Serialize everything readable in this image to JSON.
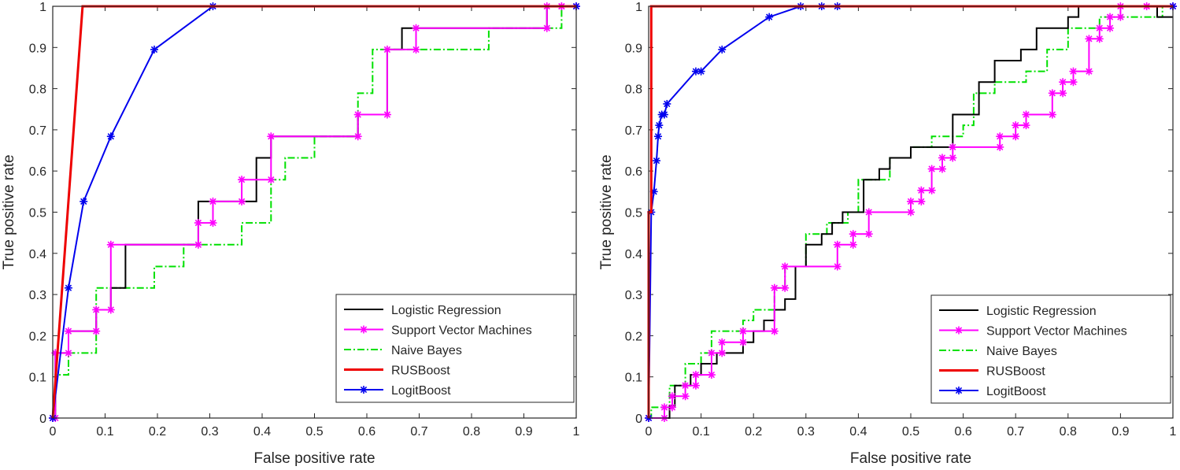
{
  "colors": {
    "logistic": "#000000",
    "svm": "#ff00ff",
    "nb": "#00e000",
    "rus": "#ee0000",
    "logit": "#0000ee",
    "axis": "#262626"
  },
  "legend_labels": [
    "Logistic Regression",
    "Support Vector Machines",
    "Naive Bayes",
    "RUSBoost",
    "LogitBoost"
  ],
  "chart_data": [
    {
      "type": "line",
      "title": "",
      "xlabel": "False positive rate",
      "ylabel": "True positive rate",
      "xlim": [
        0,
        1
      ],
      "ylim": [
        0,
        1
      ],
      "xticks": [
        "0",
        "0.1",
        "0.2",
        "0.3",
        "0.4",
        "0.5",
        "0.6",
        "0.7",
        "0.8",
        "0.9",
        "1"
      ],
      "yticks": [
        "0",
        "0.1",
        "0.2",
        "0.3",
        "0.4",
        "0.5",
        "0.6",
        "0.7",
        "0.8",
        "0.9",
        "1"
      ],
      "legend_position": "bottom-right",
      "series": [
        {
          "name": "Logistic Regression",
          "key": "logistic",
          "style": "solid",
          "marker": "none",
          "x": [
            0,
            0.005,
            0.005,
            0.03,
            0.03,
            0.083,
            0.083,
            0.111,
            0.111,
            0.139,
            0.139,
            0.278,
            0.278,
            0.389,
            0.389,
            0.417,
            0.417,
            0.583,
            0.583,
            0.639,
            0.639,
            0.667,
            0.667,
            0.944,
            0.944,
            0.972,
            0.972,
            1
          ],
          "y": [
            0,
            0,
            0.158,
            0.158,
            0.211,
            0.211,
            0.263,
            0.263,
            0.316,
            0.316,
            0.421,
            0.421,
            0.526,
            0.526,
            0.632,
            0.632,
            0.684,
            0.684,
            0.737,
            0.737,
            0.895,
            0.895,
            0.947,
            0.947,
            1,
            1,
            1,
            1
          ]
        },
        {
          "name": "Support Vector Machines",
          "key": "svm",
          "style": "solid",
          "marker": "asterisk",
          "x": [
            0,
            0.005,
            0.005,
            0.03,
            0.03,
            0.083,
            0.083,
            0.111,
            0.111,
            0.278,
            0.278,
            0.306,
            0.306,
            0.361,
            0.361,
            0.417,
            0.417,
            0.583,
            0.583,
            0.639,
            0.639,
            0.694,
            0.694,
            0.944,
            0.944,
            0.972,
            0.972,
            1
          ],
          "y": [
            0,
            0,
            0.158,
            0.158,
            0.211,
            0.211,
            0.263,
            0.263,
            0.421,
            0.421,
            0.474,
            0.474,
            0.526,
            0.526,
            0.579,
            0.579,
            0.684,
            0.684,
            0.737,
            0.737,
            0.895,
            0.895,
            0.947,
            0.947,
            1,
            1,
            1,
            1
          ]
        },
        {
          "name": "Naive Bayes",
          "key": "nb",
          "style": "dashdot",
          "marker": "none",
          "x": [
            0,
            0.005,
            0.005,
            0.03,
            0.03,
            0.083,
            0.083,
            0.194,
            0.194,
            0.25,
            0.25,
            0.361,
            0.361,
            0.417,
            0.417,
            0.444,
            0.444,
            0.5,
            0.5,
            0.583,
            0.583,
            0.611,
            0.611,
            0.833,
            0.833,
            0.972,
            0.972,
            1
          ],
          "y": [
            0,
            0,
            0.105,
            0.105,
            0.158,
            0.158,
            0.316,
            0.316,
            0.368,
            0.368,
            0.421,
            0.421,
            0.474,
            0.474,
            0.579,
            0.579,
            0.632,
            0.632,
            0.684,
            0.684,
            0.789,
            0.789,
            0.895,
            0.895,
            0.947,
            0.947,
            1,
            1
          ]
        },
        {
          "name": "RUSBoost",
          "key": "rus",
          "style": "solid",
          "marker": "none",
          "x": [
            0,
            0.057,
            1
          ],
          "y": [
            0,
            1,
            1
          ]
        },
        {
          "name": "LogitBoost",
          "key": "logit",
          "style": "solid",
          "marker": "asterisk",
          "x": [
            0,
            0.03,
            0.059,
            0.111,
            0.194,
            0.306,
            1
          ],
          "y": [
            0,
            0.316,
            0.526,
            0.684,
            0.895,
            1,
            1
          ]
        }
      ]
    },
    {
      "type": "line",
      "title": "",
      "xlabel": "False positive rate",
      "ylabel": "True positive rate",
      "xlim": [
        0,
        1
      ],
      "ylim": [
        0,
        1
      ],
      "xticks": [
        "0",
        "0.1",
        "0.2",
        "0.3",
        "0.4",
        "0.5",
        "0.6",
        "0.7",
        "0.8",
        "0.9",
        "1"
      ],
      "yticks": [
        "0",
        "0.1",
        "0.2",
        "0.3",
        "0.4",
        "0.5",
        "0.6",
        "0.7",
        "0.8",
        "0.9",
        "1"
      ],
      "legend_position": "bottom-right",
      "series": [
        {
          "name": "Logistic Regression",
          "key": "logistic",
          "style": "solid",
          "marker": "none",
          "x": [
            0,
            0.04,
            0.04,
            0.05,
            0.05,
            0.08,
            0.08,
            0.1,
            0.1,
            0.13,
            0.13,
            0.18,
            0.18,
            0.2,
            0.2,
            0.22,
            0.22,
            0.24,
            0.24,
            0.26,
            0.26,
            0.28,
            0.28,
            0.3,
            0.3,
            0.33,
            0.33,
            0.35,
            0.35,
            0.37,
            0.37,
            0.41,
            0.41,
            0.44,
            0.44,
            0.46,
            0.46,
            0.5,
            0.5,
            0.58,
            0.58,
            0.63,
            0.63,
            0.66,
            0.66,
            0.71,
            0.71,
            0.74,
            0.74,
            0.8,
            0.8,
            0.82,
            0.82,
            0.87,
            0.87,
            0.97,
            0.97,
            1
          ],
          "y": [
            0,
            0,
            0.03,
            0.03,
            0.079,
            0.079,
            0.105,
            0.105,
            0.132,
            0.132,
            0.158,
            0.158,
            0.184,
            0.184,
            0.211,
            0.211,
            0.237,
            0.237,
            0.263,
            0.263,
            0.289,
            0.289,
            0.368,
            0.368,
            0.421,
            0.421,
            0.447,
            0.447,
            0.474,
            0.474,
            0.5,
            0.5,
            0.579,
            0.579,
            0.605,
            0.605,
            0.632,
            0.632,
            0.658,
            0.658,
            0.737,
            0.737,
            0.816,
            0.816,
            0.868,
            0.868,
            0.895,
            0.895,
            0.947,
            0.947,
            0.974,
            0.974,
            1,
            1,
            1,
            1,
            0.974,
            0.974
          ]
        },
        {
          "name": "Support Vector Machines",
          "key": "svm",
          "style": "solid",
          "marker": "asterisk",
          "x": [
            0,
            0.03,
            0.03,
            0.045,
            0.045,
            0.07,
            0.07,
            0.09,
            0.09,
            0.12,
            0.12,
            0.14,
            0.14,
            0.18,
            0.18,
            0.24,
            0.24,
            0.26,
            0.26,
            0.36,
            0.36,
            0.39,
            0.39,
            0.42,
            0.42,
            0.5,
            0.5,
            0.52,
            0.52,
            0.54,
            0.54,
            0.56,
            0.56,
            0.58,
            0.58,
            0.67,
            0.67,
            0.7,
            0.7,
            0.72,
            0.72,
            0.77,
            0.77,
            0.79,
            0.79,
            0.81,
            0.81,
            0.84,
            0.84,
            0.86,
            0.86,
            0.88,
            0.88,
            0.9,
            0.9,
            0.95,
            0.95,
            1
          ],
          "y": [
            0,
            0,
            0.026,
            0.026,
            0.053,
            0.053,
            0.079,
            0.079,
            0.105,
            0.105,
            0.158,
            0.158,
            0.184,
            0.184,
            0.211,
            0.211,
            0.316,
            0.316,
            0.368,
            0.368,
            0.421,
            0.421,
            0.447,
            0.447,
            0.5,
            0.5,
            0.526,
            0.526,
            0.553,
            0.553,
            0.605,
            0.605,
            0.632,
            0.632,
            0.658,
            0.658,
            0.684,
            0.684,
            0.711,
            0.711,
            0.737,
            0.737,
            0.789,
            0.789,
            0.816,
            0.816,
            0.842,
            0.842,
            0.921,
            0.921,
            0.947,
            0.947,
            0.974,
            0.974,
            1,
            1,
            1,
            1
          ]
        },
        {
          "name": "Naive Bayes",
          "key": "nb",
          "style": "dashdot",
          "marker": "none",
          "x": [
            0,
            0.005,
            0.005,
            0.04,
            0.04,
            0.07,
            0.07,
            0.1,
            0.1,
            0.12,
            0.12,
            0.18,
            0.18,
            0.2,
            0.2,
            0.24,
            0.24,
            0.26,
            0.26,
            0.3,
            0.3,
            0.34,
            0.34,
            0.38,
            0.38,
            0.4,
            0.4,
            0.46,
            0.46,
            0.5,
            0.5,
            0.54,
            0.54,
            0.6,
            0.6,
            0.62,
            0.62,
            0.66,
            0.66,
            0.72,
            0.72,
            0.76,
            0.76,
            0.8,
            0.8,
            0.86,
            0.86,
            0.92,
            0.92,
            0.98,
            0.98,
            1
          ],
          "y": [
            0,
            0,
            0.026,
            0.026,
            0.079,
            0.079,
            0.132,
            0.132,
            0.158,
            0.158,
            0.211,
            0.211,
            0.237,
            0.237,
            0.263,
            0.263,
            0.316,
            0.316,
            0.368,
            0.368,
            0.447,
            0.447,
            0.474,
            0.474,
            0.5,
            0.5,
            0.579,
            0.579,
            0.632,
            0.632,
            0.658,
            0.658,
            0.684,
            0.684,
            0.711,
            0.711,
            0.789,
            0.789,
            0.816,
            0.816,
            0.842,
            0.842,
            0.895,
            0.895,
            0.947,
            0.947,
            0.974,
            0.974,
            0.974,
            0.974,
            1,
            1
          ]
        },
        {
          "name": "RUSBoost",
          "key": "rus",
          "style": "solid",
          "marker": "none",
          "x": [
            0,
            0,
            0.005,
            0.005,
            1
          ],
          "y": [
            0,
            0.5,
            0.5,
            1,
            1
          ]
        },
        {
          "name": "LogitBoost",
          "key": "logit",
          "style": "solid",
          "marker": "asterisk",
          "x": [
            0,
            0.005,
            0.01,
            0.015,
            0.018,
            0.02,
            0.025,
            0.03,
            0.035,
            0.09,
            0.1,
            0.14,
            0.23,
            0.29,
            0.33,
            0.36,
            1
          ],
          "y": [
            0,
            0.5,
            0.55,
            0.625,
            0.684,
            0.711,
            0.737,
            0.737,
            0.763,
            0.842,
            0.842,
            0.895,
            0.974,
            1,
            1,
            1,
            1
          ]
        }
      ]
    }
  ]
}
